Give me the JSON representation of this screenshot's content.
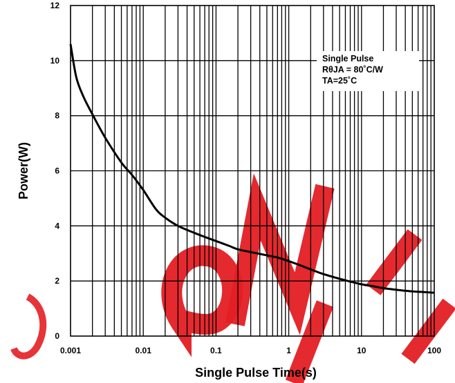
{
  "chart_data": {
    "type": "line",
    "xlabel": "Single Pulse Time(s)",
    "ylabel": "Power(W)",
    "x_scale": "log",
    "xlim": [
      0.001,
      100
    ],
    "ylim": [
      0,
      12
    ],
    "x_ticks": [
      "0.001",
      "0.01",
      "0.1",
      "1",
      "10",
      "100"
    ],
    "y_ticks": [
      "0",
      "2",
      "4",
      "6",
      "8",
      "10",
      "12"
    ],
    "grid": true,
    "annotation": [
      "Single Pulse",
      "RθJA = 80˚C/W",
      "TA=25˚C"
    ],
    "series": [
      {
        "x": [
          0.001,
          0.0012,
          0.0015,
          0.002,
          0.003,
          0.005,
          0.007,
          0.01,
          0.015,
          0.02,
          0.03,
          0.05,
          0.07,
          0.1,
          0.15,
          0.2,
          0.3,
          0.5,
          0.7,
          1,
          1.5,
          2,
          3,
          5,
          7,
          10,
          15,
          20,
          30,
          50,
          70,
          100
        ],
        "y": [
          10.6,
          9.4,
          8.7,
          8.05,
          7.2,
          6.3,
          5.85,
          5.3,
          4.6,
          4.3,
          4.0,
          3.75,
          3.6,
          3.45,
          3.28,
          3.15,
          3.05,
          2.93,
          2.85,
          2.72,
          2.55,
          2.42,
          2.25,
          2.08,
          1.98,
          1.88,
          1.8,
          1.74,
          1.68,
          1.62,
          1.6,
          1.57
        ],
        "color": "#000000"
      }
    ],
    "watermark_color": "#e31e24"
  }
}
